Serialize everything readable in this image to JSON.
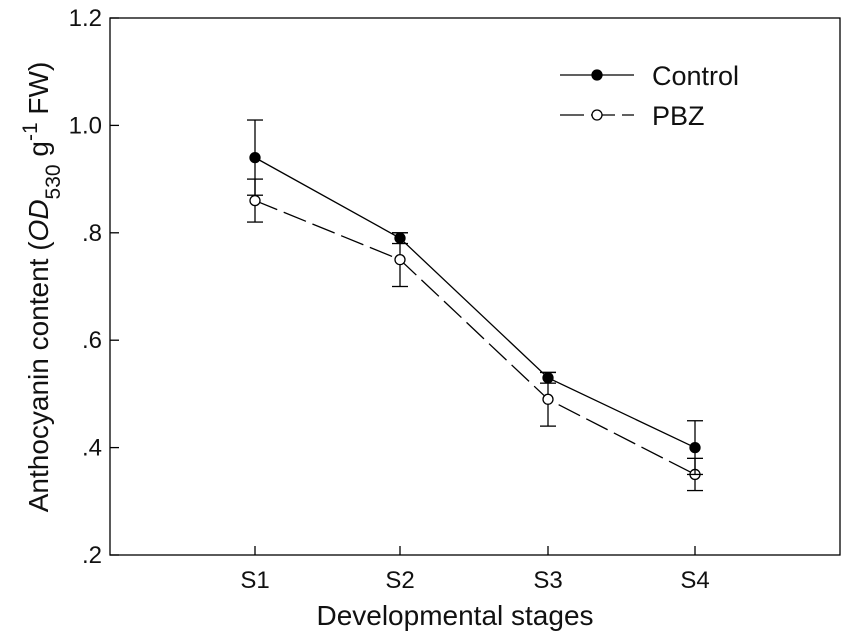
{
  "chart_data": {
    "type": "line",
    "title": "",
    "xlabel": "Developmental stages",
    "ylabel": {
      "prefix": "Anthocyanin content (",
      "od": "OD",
      "od_sub": "530",
      "unit_g": " g",
      "unit_exp": "-1",
      "suffix": " FW)"
    },
    "categories": [
      "S1",
      "S2",
      "S3",
      "S4"
    ],
    "ylim": [
      0.2,
      1.2
    ],
    "yticks": [
      0.2,
      0.4,
      0.6,
      0.8,
      1.0,
      1.2
    ],
    "ytick_labels": [
      ".2",
      ".4",
      ".6",
      ".8",
      "1.0",
      "1.2"
    ],
    "grid": false,
    "legend_position": "top-right",
    "series": [
      {
        "name": "Control",
        "marker": "filled-circle",
        "line": "solid",
        "color": "#000000",
        "values": [
          0.94,
          0.79,
          0.53,
          0.4
        ],
        "errors": [
          0.07,
          0.01,
          0.01,
          0.05
        ]
      },
      {
        "name": "PBZ",
        "marker": "open-circle",
        "line": "dashed",
        "color": "#000000",
        "values": [
          0.86,
          0.75,
          0.49,
          0.35
        ],
        "errors": [
          0.04,
          0.05,
          0.05,
          0.03
        ]
      }
    ]
  }
}
